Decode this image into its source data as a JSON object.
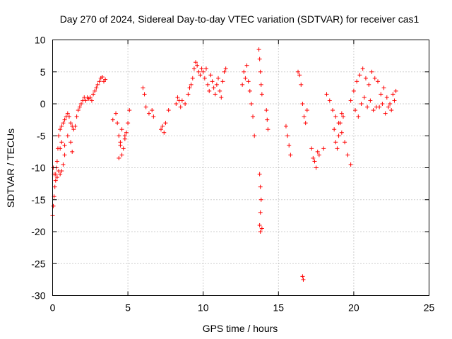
{
  "chart_data": {
    "type": "scatter",
    "title": "Day 270 of 2024, Sidereal Day-to-day VTEC variation (SDTVAR) for receiver cas1",
    "xlabel": "GPS time / hours",
    "ylabel": "SDTVAR / TECUs",
    "xlim": [
      0,
      25
    ],
    "ylim": [
      -30,
      10
    ],
    "xticks": [
      0,
      5,
      10,
      15,
      20,
      25
    ],
    "yticks": [
      -30,
      -25,
      -20,
      -15,
      -10,
      -5,
      0,
      5,
      10
    ],
    "grid": true,
    "marker": "+",
    "color": "#ff0000",
    "series": [
      {
        "name": "SDTVAR",
        "x": [
          0.0,
          0.05,
          0.1,
          0.15,
          0.2,
          0.25,
          0.3,
          0.35,
          0.4,
          0.5,
          0.6,
          0.7,
          0.8,
          0.9,
          1.0,
          1.1,
          1.2,
          1.3,
          1.4,
          1.5,
          1.6,
          1.7,
          1.8,
          1.9,
          2.0,
          2.1,
          2.2,
          2.3,
          2.4,
          2.5,
          2.6,
          2.7,
          2.8,
          2.9,
          3.0,
          3.1,
          3.2,
          3.3,
          3.4,
          3.5,
          0.05,
          0.1,
          0.2,
          0.3,
          0.4,
          0.5,
          0.6,
          0.7,
          0.8,
          0.5,
          0.6,
          0.8,
          1.0,
          1.2,
          1.3,
          4.0,
          4.2,
          4.3,
          4.4,
          4.5,
          4.6,
          4.7,
          4.8,
          4.9,
          5.0,
          5.1,
          4.4,
          4.5,
          4.6,
          4.8,
          6.0,
          6.1,
          6.2,
          6.4,
          6.6,
          6.7,
          7.2,
          7.3,
          7.4,
          7.5,
          7.7,
          8.2,
          8.3,
          8.4,
          8.5,
          8.6,
          8.8,
          9.0,
          9.1,
          9.2,
          9.3,
          9.4,
          9.5,
          9.6,
          9.7,
          9.8,
          9.9,
          10.0,
          10.1,
          10.2,
          10.3,
          10.4,
          10.5,
          10.6,
          10.7,
          10.8,
          10.9,
          11.0,
          11.1,
          11.2,
          11.3,
          11.4,
          11.5,
          12.6,
          12.7,
          12.8,
          12.9,
          13.0,
          13.1,
          13.2,
          13.3,
          13.4,
          13.7,
          13.75,
          13.8,
          13.85,
          13.9,
          13.75,
          13.8,
          13.85,
          13.8,
          13.75,
          13.8,
          13.9,
          14.2,
          14.25,
          14.3,
          15.5,
          15.6,
          15.7,
          15.8,
          16.3,
          16.4,
          16.5,
          16.6,
          16.7,
          16.8,
          16.9,
          16.6,
          16.65,
          17.2,
          17.3,
          17.4,
          17.5,
          17.6,
          17.7,
          18.0,
          18.2,
          18.4,
          18.6,
          18.8,
          19.0,
          19.2,
          19.4,
          19.6,
          19.8,
          18.7,
          18.8,
          18.9,
          19.0,
          19.1,
          19.2,
          19.3,
          19.8,
          20.0,
          20.2,
          20.4,
          20.6,
          20.8,
          21.0,
          21.2,
          21.4,
          21.6,
          21.8,
          22.0,
          22.2,
          22.4,
          22.6,
          22.8,
          20.1,
          20.3,
          20.5,
          20.7,
          20.9,
          21.1,
          21.3,
          21.5,
          21.7,
          21.9,
          22.1,
          22.3,
          22.5,
          22.7
        ],
        "y": [
          -17.5,
          -16.0,
          -14.5,
          -13.0,
          -11.0,
          -10.0,
          -9.0,
          -7.0,
          -5.0,
          -4.0,
          -3.5,
          -3.0,
          -2.5,
          -2.0,
          -1.5,
          -2.0,
          -3.0,
          -3.5,
          -4.0,
          -3.5,
          -2.0,
          -1.0,
          -0.5,
          0.0,
          0.5,
          1.0,
          0.5,
          1.0,
          0.8,
          1.0,
          0.5,
          1.5,
          2.0,
          2.5,
          3.0,
          3.5,
          4.0,
          4.2,
          3.5,
          3.8,
          -10.0,
          -11.0,
          -12.0,
          -11.5,
          -10.5,
          -11.0,
          -10.5,
          -9.5,
          -8.0,
          -7.0,
          -6.0,
          -6.5,
          -5.0,
          -6.0,
          -7.5,
          -2.5,
          -1.5,
          -3.0,
          -5.0,
          -6.0,
          -8.0,
          -7.0,
          -5.5,
          -4.5,
          -3.0,
          -1.0,
          -8.5,
          -6.5,
          -4.0,
          -5.0,
          2.5,
          1.5,
          -0.5,
          -1.5,
          -1.0,
          -2.0,
          -4.0,
          -3.5,
          -4.5,
          -3.0,
          -1.0,
          0.0,
          1.0,
          0.5,
          -0.5,
          0.5,
          0.0,
          1.5,
          2.5,
          3.0,
          4.0,
          5.5,
          6.5,
          6.0,
          5.0,
          4.5,
          5.5,
          5.0,
          4.0,
          5.5,
          3.0,
          2.0,
          4.5,
          3.5,
          2.5,
          1.5,
          3.0,
          4.0,
          2.0,
          1.0,
          3.5,
          5.0,
          5.5,
          3.0,
          5.0,
          4.0,
          6.0,
          3.5,
          2.0,
          0.0,
          -2.0,
          -5.0,
          8.5,
          7.0,
          5.0,
          3.0,
          1.5,
          -11.0,
          -13.0,
          -15.0,
          -17.0,
          -19.0,
          -20.0,
          -19.5,
          -1.0,
          -2.5,
          -4.0,
          -3.5,
          -5.0,
          -6.5,
          -8.0,
          5.0,
          4.5,
          3.0,
          0.0,
          -2.0,
          -3.0,
          -1.0,
          -27.0,
          -27.5,
          -7.0,
          -8.5,
          -9.0,
          -10.0,
          -7.5,
          -8.0,
          -7.0,
          1.5,
          0.5,
          -1.0,
          -2.0,
          -3.0,
          -4.5,
          -6.0,
          -8.0,
          -9.5,
          -4.0,
          -6.0,
          -7.0,
          -5.0,
          -3.0,
          -1.5,
          -2.0,
          0.5,
          2.0,
          3.5,
          4.5,
          5.5,
          4.0,
          3.0,
          5.0,
          4.0,
          3.5,
          1.5,
          2.5,
          1.0,
          0.0,
          1.5,
          2.0,
          -1.0,
          -2.0,
          0.0,
          1.0,
          -0.5,
          0.5,
          -1.0,
          -0.5,
          -0.5,
          0.0,
          -1.5,
          -0.5,
          -1.0,
          0.5
        ]
      }
    ]
  }
}
